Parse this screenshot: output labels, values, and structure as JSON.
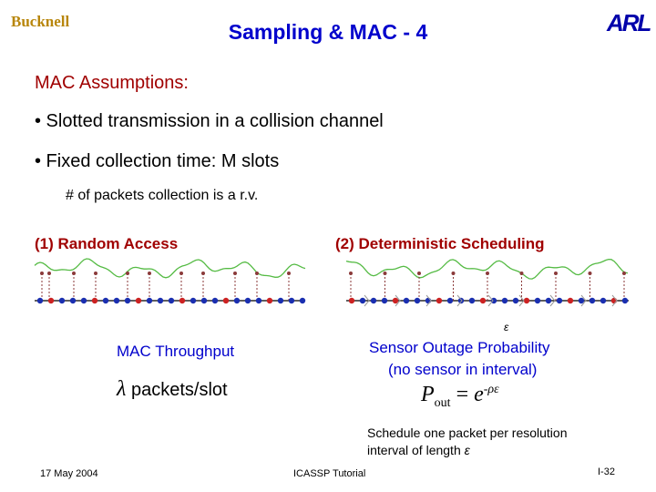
{
  "header": {
    "logo_left": "Bucknell",
    "title": "Sampling & MAC - 4",
    "logo_right": "ARL"
  },
  "body": {
    "heading": "MAC Assumptions:",
    "bullets": [
      "• Slotted transmission in a collision channel",
      "• Fixed collection time: M slots"
    ],
    "note": "# of packets collection is a r.v.",
    "left": {
      "label": "(1) Random Access",
      "caption": "MAC Throughput",
      "symbol": "λ",
      "unit": "packets/slot"
    },
    "right": {
      "label": "(2) Deterministic Scheduling",
      "epsilon": "ε",
      "caption": [
        "Sensor Outage Probability",
        "(no sensor in interval)"
      ],
      "formula": {
        "lhs": "P",
        "sub": "out",
        "eq": "=",
        "base": "e",
        "exp": "-ρε"
      },
      "schedule": [
        "Schedule one packet per resolution",
        "interval of length"
      ],
      "schedule_symbol": "ε"
    }
  },
  "footer": {
    "date": "17 May 2004",
    "venue": "ICASSP Tutorial",
    "page": "I-32"
  }
}
